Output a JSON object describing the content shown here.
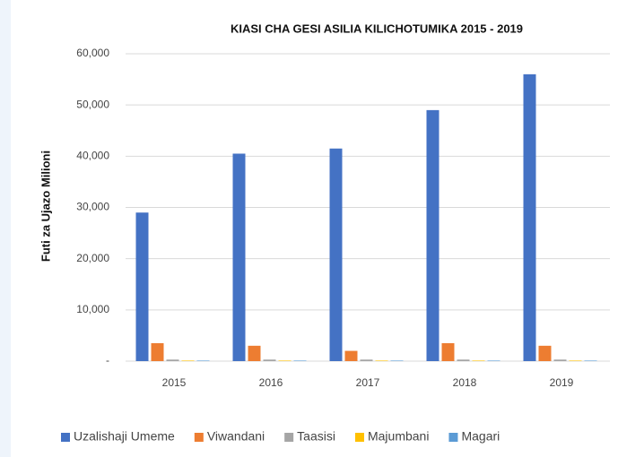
{
  "chart_data": {
    "type": "bar",
    "title": "KIASI CHA GESI ASILIA KILICHOTUMIKA 2015 - 2019",
    "ylabel": "Futi za Ujazo Milioni",
    "categories": [
      "2015",
      "2016",
      "2017",
      "2018",
      "2019"
    ],
    "series": [
      {
        "name": "Uzalishaji Umeme",
        "color": "#4472c4",
        "values": [
          29000,
          40500,
          41500,
          49000,
          56000
        ]
      },
      {
        "name": "Viwandani",
        "color": "#ed7d31",
        "values": [
          3500,
          3000,
          2000,
          3500,
          3000
        ]
      },
      {
        "name": "Taasisi",
        "color": "#a5a5a5",
        "values": [
          300,
          300,
          300,
          300,
          300
        ]
      },
      {
        "name": "Majumbani",
        "color": "#ffc000",
        "values": [
          100,
          100,
          100,
          100,
          100
        ]
      },
      {
        "name": "Magari",
        "color": "#5b9bd5",
        "values": [
          100,
          100,
          100,
          100,
          100
        ]
      }
    ],
    "ylim": [
      0,
      60000
    ],
    "yticks": [
      {
        "value": 0,
        "label": "-"
      },
      {
        "value": 10000,
        "label": "10,000"
      },
      {
        "value": 20000,
        "label": "20,000"
      },
      {
        "value": 30000,
        "label": "30,000"
      },
      {
        "value": 40000,
        "label": "40,000"
      },
      {
        "value": 50000,
        "label": "50,000"
      },
      {
        "value": 60000,
        "label": "60,000"
      }
    ],
    "grid": true,
    "legend": "bottom"
  }
}
